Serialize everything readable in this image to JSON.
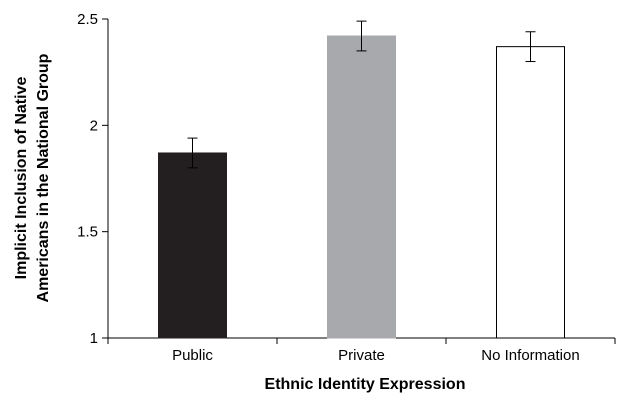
{
  "chart_data": {
    "type": "bar",
    "categories": [
      "Public",
      "Private",
      "No Information"
    ],
    "values": [
      1.87,
      2.42,
      2.37
    ],
    "error_bars": [
      0.07,
      0.07,
      0.07
    ],
    "bar_colors": [
      "#231f20",
      "#a7a9ac",
      "#ffffff"
    ],
    "bar_edge_color": "#000000",
    "xlabel": "Ethnic Identity Expression",
    "ylabel_lines": [
      "Implicit Inclusion of Native",
      "Americans in the National Group"
    ],
    "ylim": [
      1,
      2.5
    ],
    "yticks": [
      1,
      1.5,
      2,
      2.5
    ],
    "ytick_labels": [
      "1",
      "1.5",
      "2",
      "2.5"
    ],
    "grid": false,
    "legend": "none"
  }
}
